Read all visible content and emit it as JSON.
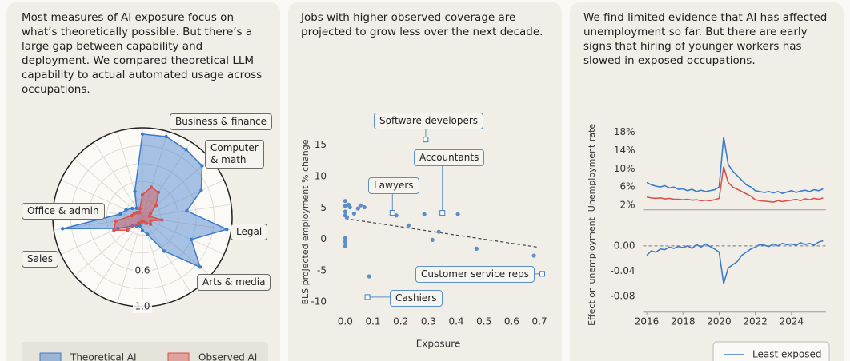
{
  "chart_data": [
    {
      "type": "radar",
      "title": "Most measures of AI exposure focus on what’s theoretically possible. But there’s a large gap between capability and deployment. We compared theoretical LLM capability to actual automated usage across occupations.",
      "categories": [
        null,
        "Business & finance",
        null,
        "Computer & math",
        null,
        null,
        "Legal",
        null,
        "Arts & media",
        null,
        null,
        null,
        null,
        null,
        null,
        "Sales",
        "Office & admin",
        null,
        null,
        null,
        null,
        null
      ],
      "series": [
        {
          "name": "Theoretical AI",
          "color": "#3d7cc9",
          "values": [
            0.93,
            0.94,
            0.9,
            0.88,
            0.72,
            0.5,
            0.95,
            0.6,
            0.85,
            0.45,
            0.2,
            0.15,
            0.1,
            0.12,
            0.15,
            0.3,
            0.9,
            0.25,
            0.2,
            0.15,
            0.12,
            0.3
          ]
        },
        {
          "name": "Observed AI",
          "color": "#d9534f",
          "values": [
            0.25,
            0.35,
            0.33,
            0.2,
            0.1,
            0.08,
            0.22,
            0.1,
            0.12,
            0.08,
            0.05,
            0.05,
            0.06,
            0.08,
            0.22,
            0.35,
            0.3,
            0.12,
            0.1,
            0.08,
            0.06,
            0.1
          ]
        }
      ],
      "rlim": [
        0,
        1
      ],
      "rgrid": [
        0.2,
        0.4,
        0.8
      ],
      "rticks": [
        0.6,
        {
          "value": 1,
          "label": "1.0"
        }
      ]
    },
    {
      "type": "scatter",
      "title": "Jobs with higher observed coverage are projected to grow less over the next decade.",
      "xlabel": "Exposure",
      "ylabel": "BLS projected employment % change",
      "color": "#5b8fc9",
      "x": [
        0,
        0,
        0,
        0,
        0.006,
        0.012,
        0.017,
        0.032,
        0.046,
        0.055,
        0.069,
        0,
        0,
        0,
        0.086,
        0.184,
        0.228,
        0.285,
        0.314,
        0.337,
        0.406,
        0.473,
        0.68
      ],
      "y": [
        6.1,
        5.3,
        4.4,
        3.8,
        3.5,
        5.5,
        5.1,
        4.1,
        4.9,
        5.4,
        5.1,
        -0.4,
        -1.1,
        0.2,
        -5.9,
        3.8,
        2.2,
        4.0,
        -0.1,
        1.2,
        4.0,
        -1.5,
        -2.6
      ],
      "xlim": [
        -0.05,
        0.72
      ],
      "ylim": [
        -11.5,
        17
      ],
      "xticks": [
        {
          "value": 0,
          "label": "0.0"
        },
        0.1,
        0.2,
        0.3,
        0.4,
        0.5,
        0.6,
        0.7
      ],
      "yticks": [
        -10,
        -5,
        0,
        5,
        10,
        15
      ],
      "trendline": {
        "x": [
          0,
          0.7
        ],
        "y": [
          3.3,
          -1.3
        ]
      },
      "annotations": [
        {
          "label": "Software developers",
          "x": 0.29,
          "y": 15.9
        },
        {
          "label": "Accountants",
          "x": 0.35,
          "y": 4.2
        },
        {
          "label": "Lawyers",
          "x": 0.17,
          "y": 4.2
        },
        {
          "label": "Customer service reps",
          "x": 0.71,
          "y": -5.5
        },
        {
          "label": "Cashiers",
          "x": 0.08,
          "y": -9.2
        }
      ]
    },
    {
      "type": "line",
      "title": "We find limited evidence that AI has affected unemployment so far. But there are early signs that hiring of younger workers has slowed in exposed occupations.",
      "ylabel": "Unemployment rate",
      "x": [
        2016,
        2016.25,
        2016.5,
        2016.75,
        2017,
        2017.25,
        2017.5,
        2017.75,
        2018,
        2018.25,
        2018.5,
        2018.75,
        2019,
        2019.25,
        2019.5,
        2019.75,
        2020,
        2020.25,
        2020.5,
        2020.75,
        2021,
        2021.25,
        2021.5,
        2021.75,
        2022,
        2022.25,
        2022.5,
        2022.75,
        2023,
        2023.25,
        2023.5,
        2023.75,
        2024,
        2024.25,
        2024.5,
        2024.75,
        2025,
        2025.25,
        2025.5,
        2025.75
      ],
      "xlim": [
        2015.8,
        2025.9
      ],
      "ylim": [
        1,
        19
      ],
      "yticks": [
        {
          "value": 2,
          "label": "2%"
        },
        {
          "value": 6,
          "label": "6%"
        },
        {
          "value": 10,
          "label": "10%"
        },
        {
          "value": 14,
          "label": "14%"
        },
        {
          "value": 18,
          "label": "18%"
        }
      ],
      "series": [
        {
          "name": "Least exposed",
          "color": "#3d7cc9",
          "values": [
            7,
            6.5,
            6.2,
            6,
            6.3,
            5.8,
            6,
            5.5,
            5.6,
            5.2,
            5.5,
            5,
            5.3,
            5,
            5.2,
            5.4,
            6,
            17,
            11,
            9.5,
            8.5,
            7.5,
            6.5,
            6,
            5.2,
            5,
            4.8,
            5,
            4.7,
            5,
            4.6,
            4.9,
            5.2,
            4.8,
            5.1,
            5.3,
            5,
            5.4,
            5.2,
            5.6
          ]
        },
        {
          "color": "#d9534f",
          "values": [
            3.8,
            3.6,
            3.5,
            3.6,
            3.4,
            3.5,
            3.3,
            3.3,
            3.2,
            3.3,
            3.1,
            3.2,
            3,
            3.1,
            3,
            3.2,
            3.5,
            10.5,
            7,
            6,
            5.5,
            5,
            4.5,
            4,
            3.2,
            3,
            2.9,
            2.8,
            2.7,
            3,
            2.8,
            3,
            3.1,
            3.3,
            3,
            3.4,
            3.2,
            3.5,
            3.3,
            3.6
          ]
        }
      ]
    },
    {
      "type": "line",
      "ylabel": "Effect on unemployment",
      "zero_line": true,
      "x": [
        2016,
        2016.25,
        2016.5,
        2016.75,
        2017,
        2017.25,
        2017.5,
        2017.75,
        2018,
        2018.25,
        2018.5,
        2018.75,
        2019,
        2019.25,
        2019.5,
        2019.75,
        2020,
        2020.25,
        2020.5,
        2020.75,
        2021,
        2021.25,
        2021.5,
        2021.75,
        2022,
        2022.25,
        2022.5,
        2022.75,
        2023,
        2023.25,
        2023.5,
        2023.75,
        2024,
        2024.25,
        2024.5,
        2024.75,
        2025,
        2025.25,
        2025.5,
        2025.75
      ],
      "xlim": [
        2015.8,
        2025.9
      ],
      "xticks": [
        2016,
        2018,
        2020,
        2022,
        2024
      ],
      "ylim": [
        -0.105,
        0.015
      ],
      "yticks": [
        {
          "value": 0,
          "label": "0.00"
        },
        {
          "value": -0.04,
          "label": "-0.04"
        },
        {
          "value": -0.08,
          "label": "-0.08"
        }
      ],
      "series": [
        {
          "color": "#3d7cc9",
          "values": [
            -0.015,
            -0.008,
            -0.01,
            -0.005,
            -0.006,
            -0.002,
            -0.004,
            -0.001,
            -0.003,
            0,
            -0.004,
            0.002,
            -0.002,
            0.003,
            -0.001,
            -0.005,
            -0.01,
            -0.06,
            -0.035,
            -0.03,
            -0.025,
            -0.015,
            -0.01,
            -0.005,
            -0.002,
            0.002,
            0.001,
            -0.001,
            0.003,
            0,
            0.004,
            0.002,
            0.003,
            0.001,
            0.005,
            0.002,
            0.004,
            0.001,
            0.006,
            0.008
          ]
        }
      ]
    }
  ]
}
